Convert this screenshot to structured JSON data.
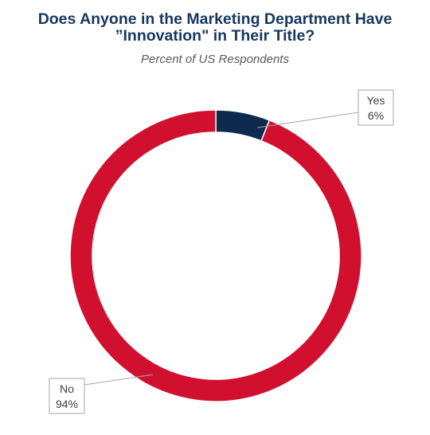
{
  "chart_data": {
    "type": "pie",
    "style": "donut",
    "title_lines": [
      "Does Anyone in the Marketing Department Have",
      "”Innovation\" in Their Title?"
    ],
    "subtitle": "Percent of US Respondents",
    "slices": [
      {
        "label": "Yes",
        "value": 6,
        "value_label": "6%",
        "color": "#0e2a4f"
      },
      {
        "label": "No",
        "value": 94,
        "value_label": "94%",
        "color": "#d0102e"
      }
    ]
  }
}
